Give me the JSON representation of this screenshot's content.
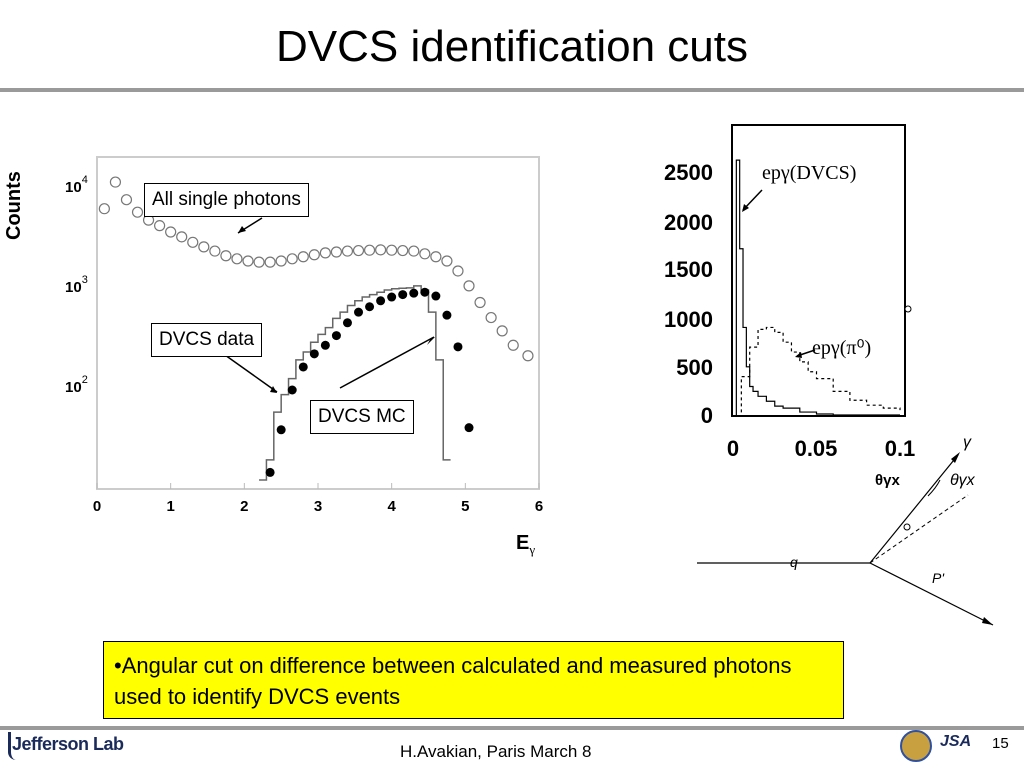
{
  "slide": {
    "title": "DVCS identification cuts",
    "bullet": "•Angular cut  on difference between calculated and measured photons used to identify DVCS events",
    "footer_author": "H.Avakian, Paris March 8",
    "page_number": "15",
    "logo_text": "Jefferson Lab",
    "jsa_text": "JSA"
  },
  "left_plot": {
    "ylabel": "Counts",
    "xlabel": "E",
    "xlabel_sub": "γ",
    "x_ticks": [
      "0",
      "1",
      "2",
      "3",
      "4",
      "5",
      "6"
    ],
    "y_ticks": [
      {
        "base": "10",
        "exp": "4"
      },
      {
        "base": "10",
        "exp": "3"
      },
      {
        "base": "10",
        "exp": "2"
      }
    ],
    "callouts": {
      "all_photons": "All single photons",
      "dvcs_data": "DVCS data",
      "dvcs_mc": "DVCS MC"
    }
  },
  "right_plot": {
    "y_ticks": [
      "2500",
      "2000",
      "1500",
      "1000",
      "500",
      "0"
    ],
    "x_ticks": [
      "0",
      "0.05",
      "0.1"
    ],
    "xlabel": "θγx",
    "label_dvcs": "epγ(DVCS)",
    "label_pi0": "epγ(π⁰)"
  },
  "diagram": {
    "q_label": "q",
    "p_label": "P'",
    "gamma_label": "γ",
    "theta_label": "θγx"
  },
  "chart_data": [
    {
      "type": "scatter",
      "title": "",
      "xlabel": "Eγ",
      "ylabel": "Counts",
      "xlim": [
        0,
        6
      ],
      "yscale": "log",
      "ylim": [
        10,
        20000
      ],
      "series": [
        {
          "name": "All single photons",
          "marker": "open-circle",
          "x": [
            0.1,
            0.25,
            0.4,
            0.55,
            0.7,
            0.85,
            1.0,
            1.15,
            1.3,
            1.45,
            1.6,
            1.75,
            1.9,
            2.05,
            2.2,
            2.35,
            2.5,
            2.65,
            2.8,
            2.95,
            3.1,
            3.25,
            3.4,
            3.55,
            3.7,
            3.85,
            4.0,
            4.15,
            4.3,
            4.45,
            4.6,
            4.75,
            4.9,
            5.05,
            5.2,
            5.35,
            5.5,
            5.65,
            5.85
          ],
          "y": [
            6500,
            12000,
            8000,
            6000,
            5000,
            4400,
            3800,
            3400,
            3000,
            2700,
            2450,
            2200,
            2050,
            1950,
            1900,
            1900,
            1950,
            2050,
            2150,
            2250,
            2350,
            2400,
            2450,
            2480,
            2500,
            2520,
            2500,
            2480,
            2450,
            2300,
            2150,
            1950,
            1550,
            1100,
            750,
            530,
            390,
            280,
            220
          ]
        },
        {
          "name": "DVCS data",
          "marker": "filled-circle",
          "x": [
            2.25,
            2.35,
            2.5,
            2.65,
            2.8,
            2.95,
            3.1,
            3.25,
            3.4,
            3.55,
            3.7,
            3.85,
            4.0,
            4.15,
            4.3,
            4.45,
            4.6,
            4.75,
            4.9,
            5.05
          ],
          "y": [
            9,
            15,
            40,
            100,
            170,
            230,
            280,
            350,
            470,
            600,
            680,
            780,
            850,
            900,
            930,
            950,
            870,
            560,
            270,
            42
          ]
        },
        {
          "name": "DVCS MC",
          "marker": "histogram",
          "x": [
            2.2,
            2.3,
            2.4,
            2.5,
            2.6,
            2.7,
            2.8,
            2.9,
            3.0,
            3.1,
            3.2,
            3.3,
            3.4,
            3.5,
            3.6,
            3.7,
            3.8,
            3.9,
            4.0,
            4.1,
            4.2,
            4.3,
            4.4,
            4.5,
            4.6,
            4.7
          ],
          "y": [
            10,
            20,
            60,
            90,
            130,
            200,
            240,
            300,
            360,
            420,
            520,
            600,
            700,
            780,
            850,
            900,
            950,
            1000,
            1030,
            1040,
            1050,
            1100,
            1000,
            600,
            200,
            20
          ]
        }
      ]
    },
    {
      "type": "line",
      "title": "",
      "xlabel": "θγx",
      "ylabel": "",
      "xlim": [
        0,
        0.1
      ],
      "ylim": [
        0,
        2800
      ],
      "series": [
        {
          "name": "epγ(DVCS)",
          "style": "solid",
          "x": [
            0.0,
            0.002,
            0.004,
            0.006,
            0.008,
            0.01,
            0.012,
            0.015,
            0.02,
            0.025,
            0.03,
            0.04,
            0.05,
            0.06
          ],
          "y": [
            0,
            2600,
            1700,
            900,
            500,
            300,
            250,
            200,
            150,
            100,
            80,
            40,
            20,
            10
          ]
        },
        {
          "name": "epγ(π0)",
          "style": "dashed",
          "x": [
            0.0,
            0.005,
            0.01,
            0.015,
            0.02,
            0.025,
            0.03,
            0.035,
            0.04,
            0.045,
            0.05,
            0.06,
            0.07,
            0.08,
            0.09,
            0.1
          ],
          "y": [
            0,
            400,
            700,
            880,
            900,
            850,
            750,
            650,
            550,
            450,
            380,
            250,
            160,
            110,
            80,
            60
          ]
        }
      ]
    }
  ]
}
